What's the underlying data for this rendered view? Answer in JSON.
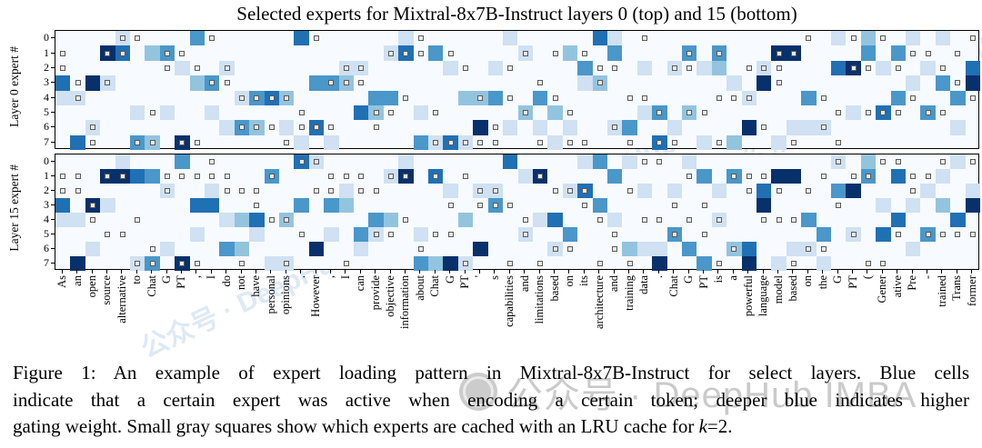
{
  "title": "Selected experts for Mixtral-8x7B-Instruct layers 0 (top) and 15 (bottom)",
  "caption": {
    "lines": [
      "Figure 1: An example of expert loading pattern in Mixtral-8x7B-Instruct for select layers. Blue cells",
      "indicate that a certain expert was active when encoding a certain token; deeper blue indicates higher"
    ],
    "last_line_prefix": "gating weight. Small gray squares show which experts are cached with an LRU cache for ",
    "k_symbol": "k",
    "k_suffix": "=2."
  },
  "watermarks": {
    "caption_text": "公众号 · DeepHub IMBA",
    "diagonal_text": "公众号 · DeepHub IMBA"
  },
  "chart_data": {
    "type": "heatmap",
    "title": "Selected experts for Mixtral-8x7B-Instruct layers 0 (top) and 15 (bottom)",
    "x_tokens": [
      "As",
      "an",
      "open",
      "source",
      "alternative",
      "to",
      "Chat",
      "G",
      "PT",
      ",",
      "I",
      "do",
      "not",
      "have",
      "personal",
      "opinions",
      ".",
      "However",
      ",",
      "I",
      "can",
      "provide",
      "objective",
      "information",
      "about",
      "Chat",
      "G",
      "PT",
      "'",
      "s",
      "capabilities",
      "and",
      "limitations",
      "based",
      "on",
      "its",
      "architecture",
      "and",
      "training",
      "data",
      ".",
      "Chat",
      "G",
      "PT",
      "is",
      "a",
      "powerful",
      "language",
      "model",
      "based",
      "on",
      "the",
      "G",
      "PT",
      "(",
      "Gener",
      "ative",
      "Pre",
      "-",
      "trained",
      "Trans",
      "former"
    ],
    "expert_rows": [
      "0",
      "1",
      "2",
      "3",
      "4",
      "5",
      "6",
      "7"
    ],
    "intensity_scale": {
      "0": "#f7fbff",
      "1": "#cfe1f2",
      "2": "#93c4de",
      "3": "#4a97c9",
      "4": "#2070b4",
      "5": "#08306b"
    },
    "cached_marker": {
      "meaning": "expert cached by LRU cache, k=2",
      "fill": "#ebebeb",
      "border": "#5a5a5a"
    },
    "panels": [
      {
        "ylabel": "Layer 0 expert #",
        "intensity": [
          "00001000030000004000000100000010000041000000000000001020010100",
          "00054023000000000000001403000001002003000030300055000030300000",
          "00000000100100000001100000100100000300010101200100004501001004",
          "40510000023000000332000000000000000120000000010500000000010305",
          "11000000000013420000033000022300300000000000001000300000300030",
          "00000101001000000000420010000002020000013020000000000104003000",
          "00100000000132010400000000005010101001300100005001110000000010",
          "04000320500000001010000031410000010000004001020010000000000000"
        ],
        "cached": [
          "00001100001000000100000010000000000000010000000000100101000001",
          "10011001100000000000001110100001010100000010100011000000011010",
          "10000001010100000001100000010010000011000110001110000110100100",
          "01010000001100000011100000000000100010000000000010000000000010",
          "01000000000011110000000100001010010000110000111000010000010001",
          "00000010000000001000011001000001001000001011000000001011101100",
          "00100000000011101110010000000100000001000000000100010000000000",
          "00100110110000010000000001111100101100101100100001001000000000"
        ]
      },
      {
        "ylabel": "Layer 15 expert #",
        "intensity": [
          "00001000300000004100000100000040000130100010000000001020000010",
          "00055430000000300000001504000001500003000003030055000030400100",
          "00000001001000000001000000101100001400010100100400003500001001",
          "40510000044000003032000000000300000030000000000500000001010205",
          "11000000000124020000032000020000140001000000100000300000400040",
          "00000000010001000010310010000001003000000300000000030104003000",
          "00100001000320000500100000005000010000211030024001100000010000",
          "05000130500000110000000032510000000000005003005010010000000000"
        ],
        "cached": [
          "00000000001000001100000000000000000000011000000000001001100101",
          "11011001111100100011101101010000100000000010011100010110011000",
          "11000001000111000110110000001100011100100000001010100000010000",
          "00100000000001000000000000101110000100000101000000001000000000",
          "00100100000000110000000100000001000010011010100111000000000000",
          "00011000000000001000011001100001000001000101000000000100101111",
          "00000010000000000000000010000000011001000000010000110000000000",
          "00000110110010010001000000010010100010100000100001000011000000"
        ]
      }
    ]
  }
}
